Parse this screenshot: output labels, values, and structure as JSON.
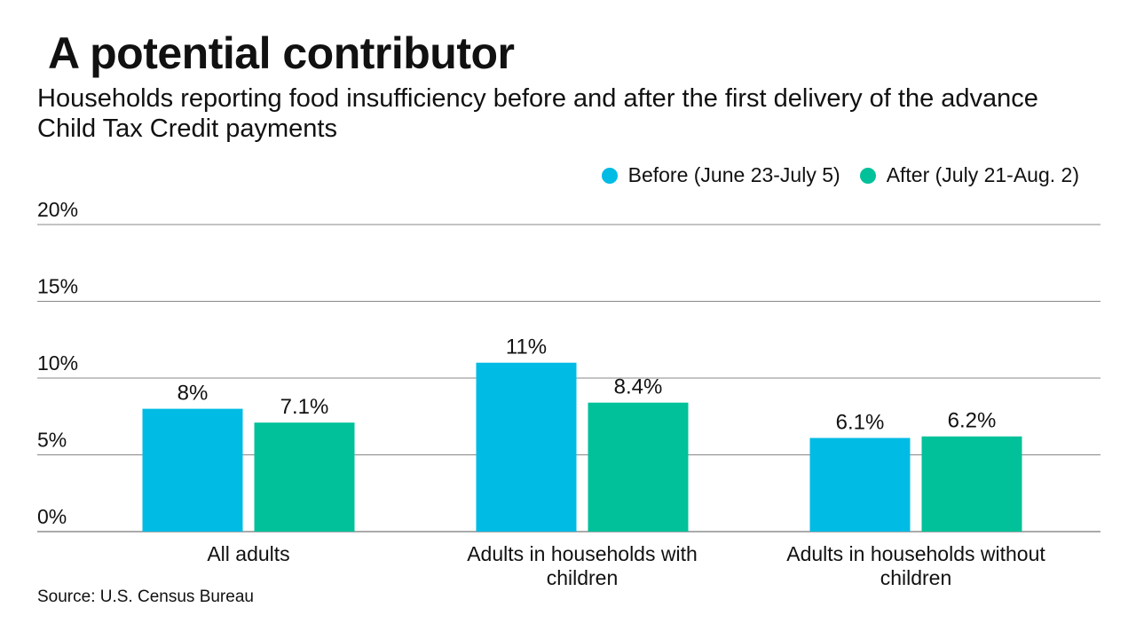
{
  "chart_data": {
    "type": "bar",
    "title": "A potential contributor",
    "subtitle": "Households reporting food insufficiency before and after the first delivery of the advance Child Tax Credit payments",
    "categories": [
      [
        "All adults"
      ],
      [
        "Adults in households with",
        "children"
      ],
      [
        "Adults in households without",
        "children"
      ]
    ],
    "series": [
      {
        "name": "Before (June 23-July 5)",
        "color": "#00bbe4",
        "values": [
          8,
          11,
          6.1
        ],
        "labels": [
          "8%",
          "11%",
          "6.1%"
        ]
      },
      {
        "name": "After (July 21-Aug. 2)",
        "color": "#00c19a",
        "values": [
          7.1,
          8.4,
          6.2
        ],
        "labels": [
          "7.1%",
          "8.4%",
          "6.2%"
        ]
      }
    ],
    "ylim": [
      0,
      20
    ],
    "yticks": [
      0,
      5,
      10,
      15,
      20
    ],
    "ytick_labels": [
      "0%",
      "5%",
      "10%",
      "15%",
      "20%"
    ],
    "grid": true,
    "legend_position": "top-right",
    "source": "Source: U.S. Census Bureau"
  }
}
